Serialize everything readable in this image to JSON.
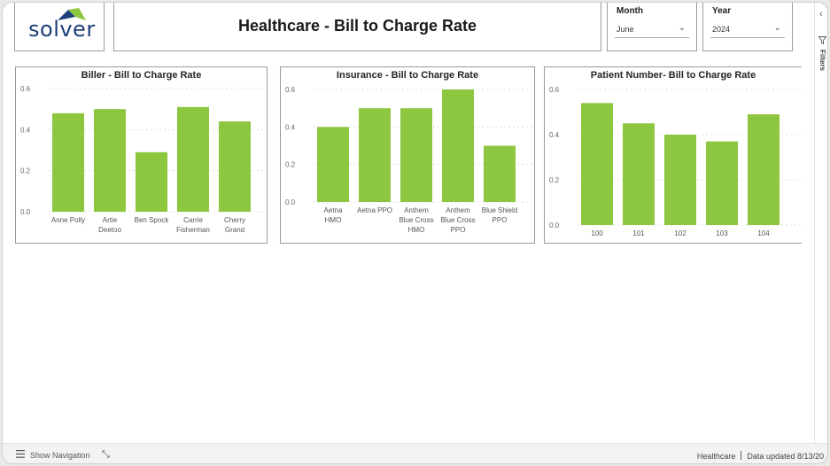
{
  "header": {
    "logo_text": "solver",
    "title": "Healthcare - Bill to Charge Rate"
  },
  "slicers": {
    "month": {
      "label": "Month",
      "value": "June"
    },
    "year": {
      "label": "Year",
      "value": "2024"
    }
  },
  "filters_pane": {
    "label": "Filters"
  },
  "footer": {
    "show_navigation": "Show Navigation",
    "page_name": "Healthcare",
    "data_updated": "Data updated 8/13/20"
  },
  "colors": {
    "bar": "#8dc63f",
    "grid": "#d6d6d6",
    "logo_blue": "#1f3f7a",
    "logo_green": "#8dc63f"
  },
  "chart_data": [
    {
      "type": "bar",
      "title": "Biller - Bill to Charge Rate",
      "categories": [
        [
          "Anne Polly"
        ],
        [
          "Artie",
          "Deetoo"
        ],
        [
          "Ben Spock"
        ],
        [
          "Carrie",
          "Fisherman"
        ],
        [
          "Cherry",
          "Grand"
        ]
      ],
      "values": [
        0.48,
        0.5,
        0.29,
        0.51,
        0.44
      ],
      "yticks": [
        "0.0",
        "0.2",
        "0.4",
        "0.6"
      ],
      "ylim": [
        0,
        0.6
      ],
      "grid": true
    },
    {
      "type": "bar",
      "title": "Insurance - Bill to Charge Rate",
      "categories": [
        [
          "Aetna",
          "HMO"
        ],
        [
          "Aetna PPO"
        ],
        [
          "Anthem",
          "Blue Cross",
          "HMO"
        ],
        [
          "Anthem",
          "Blue Cross",
          "PPO"
        ],
        [
          "Blue Shield",
          "PPO"
        ]
      ],
      "values": [
        0.4,
        0.5,
        0.5,
        0.6,
        0.3
      ],
      "yticks": [
        "0.0",
        "0.2",
        "0.4",
        "0.6"
      ],
      "ylim": [
        0,
        0.6
      ],
      "grid": true
    },
    {
      "type": "bar",
      "title": "Patient Number- Bill to Charge Rate",
      "categories": [
        [
          "100"
        ],
        [
          "101"
        ],
        [
          "102"
        ],
        [
          "103"
        ],
        [
          "104"
        ]
      ],
      "values": [
        0.54,
        0.45,
        0.4,
        0.37,
        0.49
      ],
      "yticks": [
        "0.0",
        "0.2",
        "0.4",
        "0.6"
      ],
      "ylim": [
        0,
        0.6
      ],
      "grid": true
    }
  ]
}
